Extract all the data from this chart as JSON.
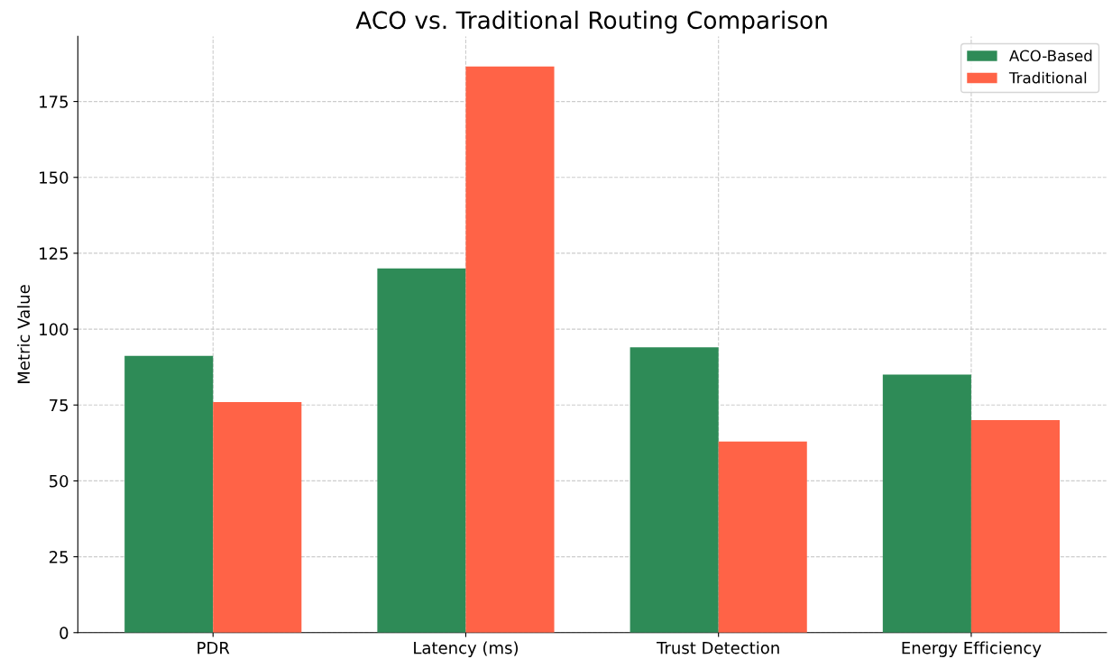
{
  "chart_data": {
    "type": "bar",
    "title": "ACO vs. Traditional Routing Comparison",
    "ylabel": "Metric Value",
    "categories": [
      "PDR",
      "Latency (ms)",
      "Trust Detection",
      "Energy Efficiency"
    ],
    "series": [
      {
        "name": "ACO-Based",
        "color": "#2e8b57",
        "values": [
          91.2,
          120,
          94,
          85
        ]
      },
      {
        "name": "Traditional",
        "color": "#ff6347",
        "values": [
          76,
          186.5,
          63,
          70
        ]
      }
    ],
    "ylim": [
      0,
      196.5
    ],
    "yticks": [
      0,
      25,
      50,
      75,
      100,
      125,
      150,
      175
    ],
    "grid": true,
    "legend": "top right"
  }
}
